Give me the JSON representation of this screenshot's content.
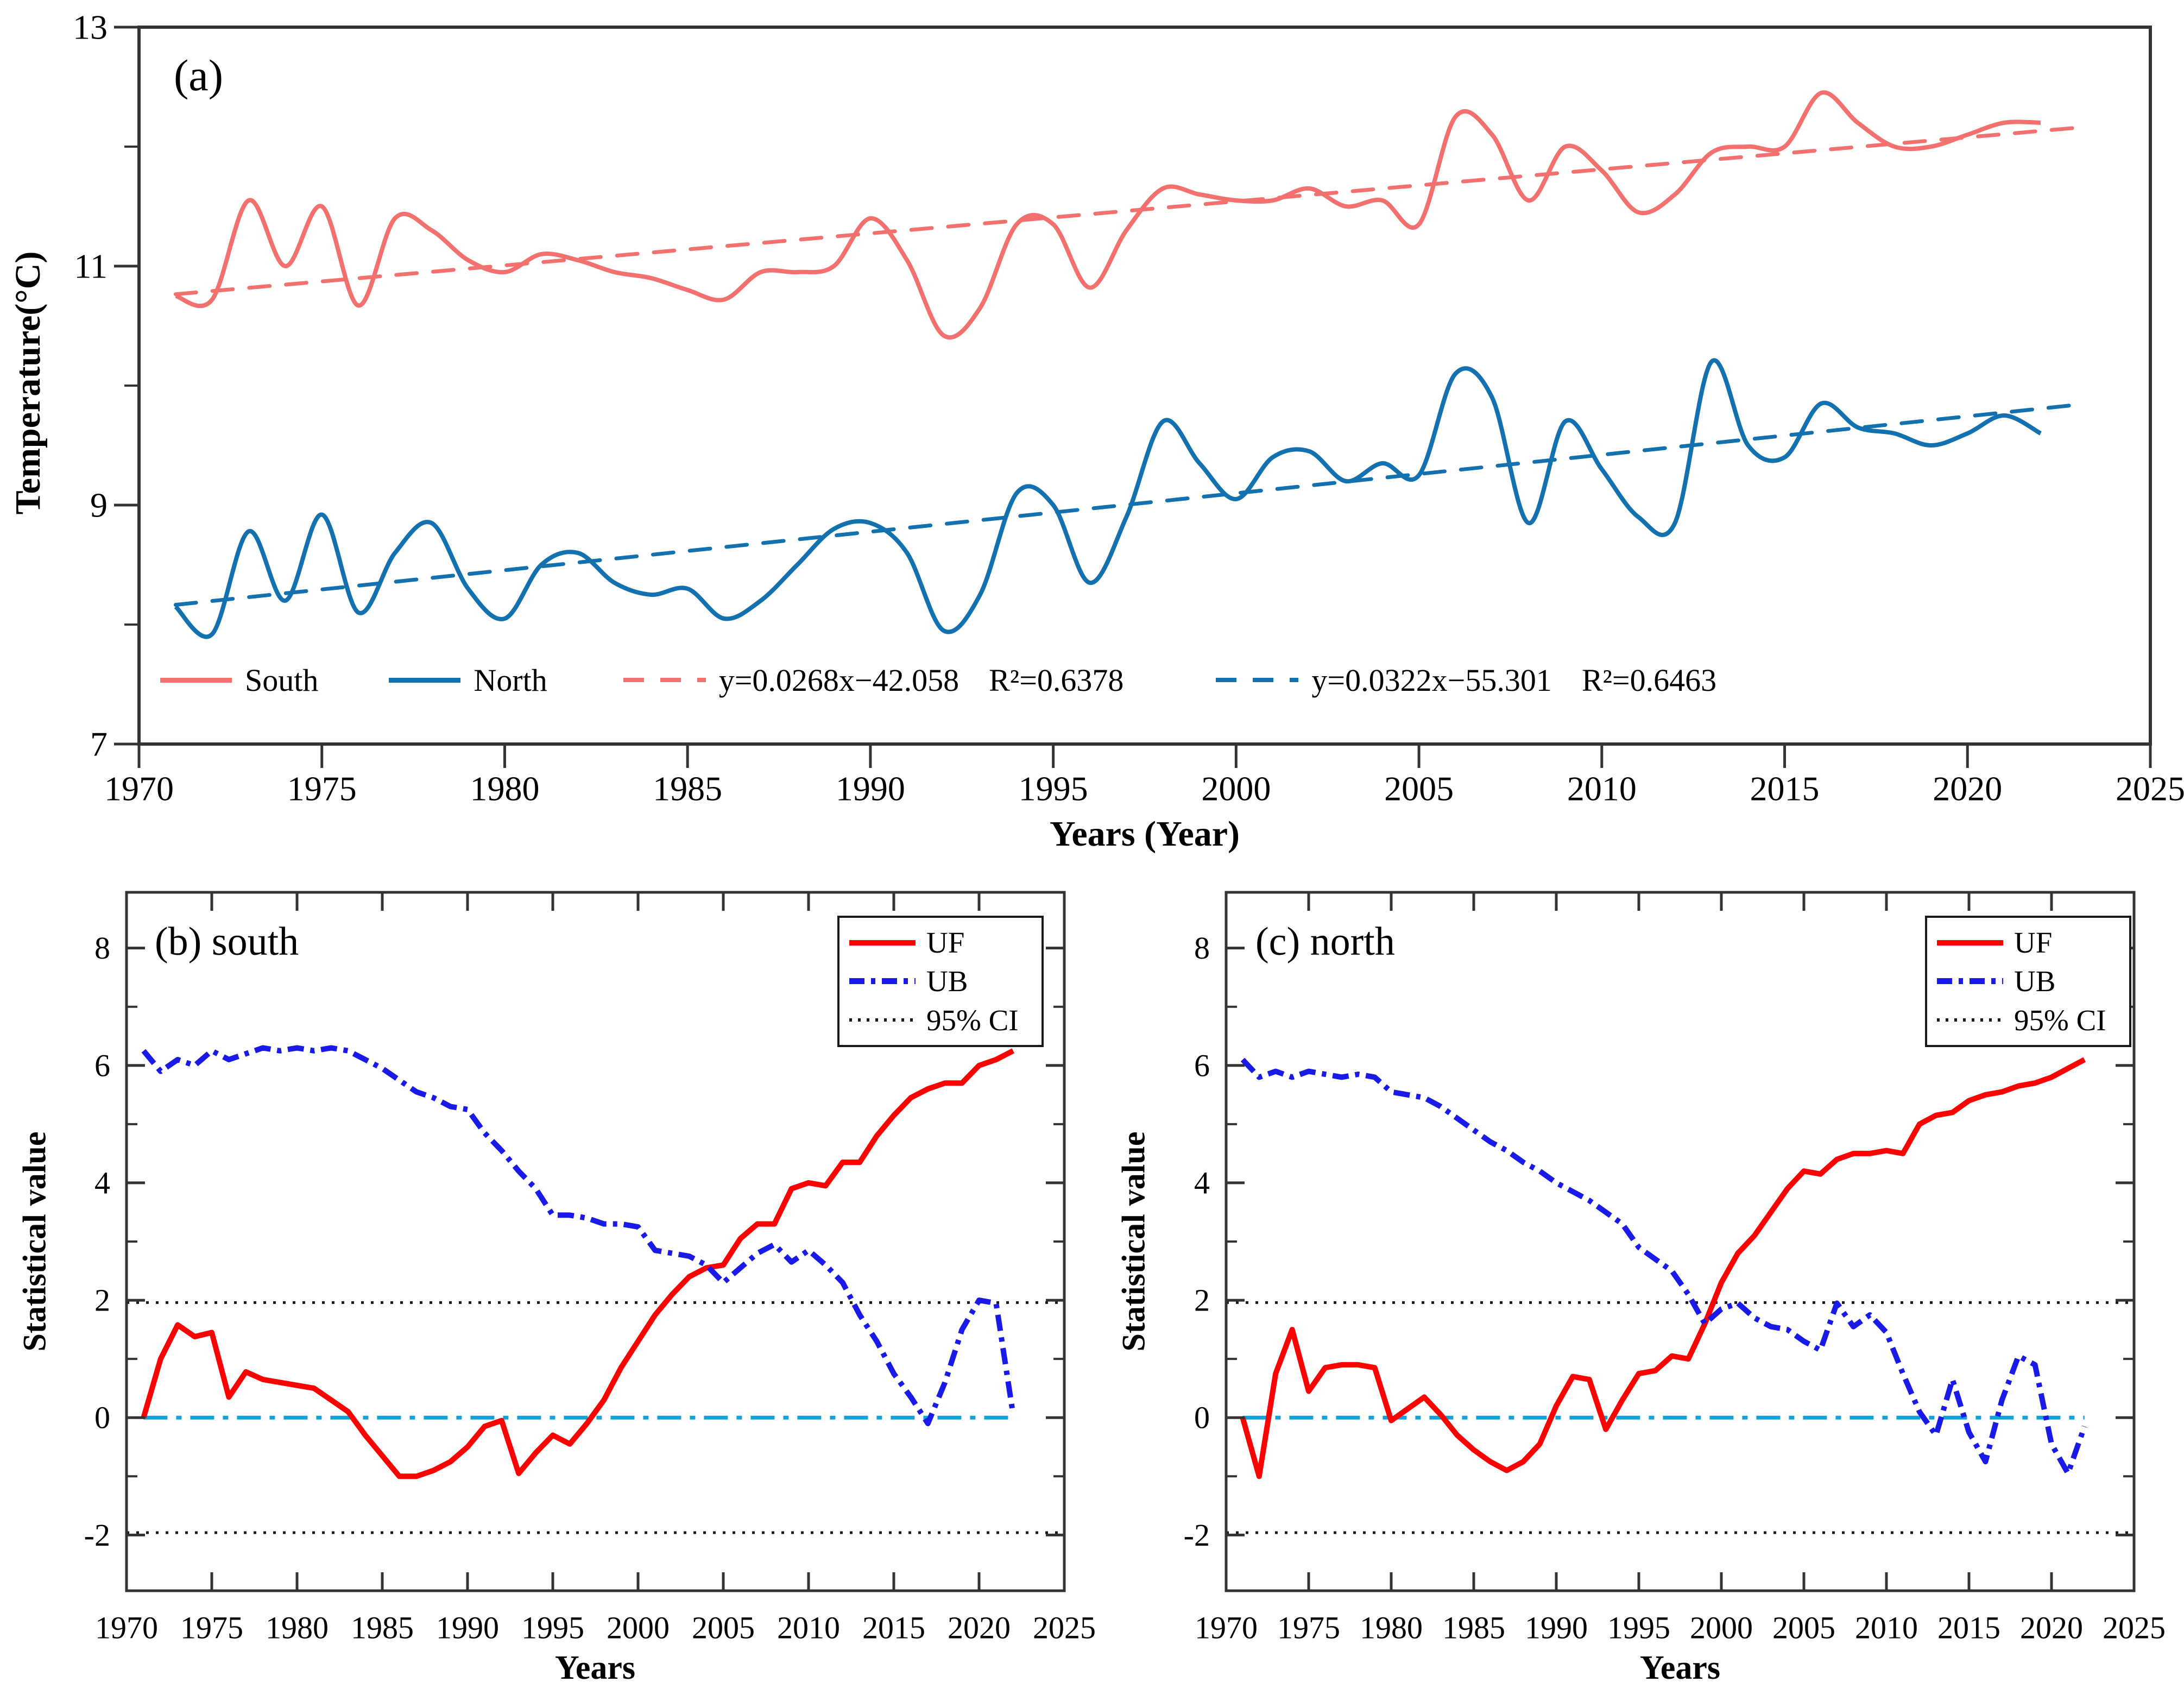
{
  "chart_data": [
    {
      "id": "a",
      "type": "line",
      "panel_label": "(a)",
      "x_label": "Years (Year)",
      "y_label": "Temperature(°C)",
      "xlim": [
        1970,
        2025
      ],
      "ylim": [
        7,
        13
      ],
      "x_ticks": [
        1970,
        1975,
        1980,
        1985,
        1990,
        1995,
        2000,
        2005,
        2010,
        2015,
        2020,
        2025
      ],
      "y_ticks": [
        7,
        9,
        11,
        13
      ],
      "y_ticks_minor": [
        8,
        10,
        12
      ],
      "years": [
        1971,
        1972,
        1973,
        1974,
        1975,
        1976,
        1977,
        1978,
        1979,
        1980,
        1981,
        1982,
        1983,
        1984,
        1985,
        1986,
        1987,
        1988,
        1989,
        1990,
        1991,
        1992,
        1993,
        1994,
        1995,
        1996,
        1997,
        1998,
        1999,
        2000,
        2001,
        2002,
        2003,
        2004,
        2005,
        2006,
        2007,
        2008,
        2009,
        2010,
        2011,
        2012,
        2013,
        2014,
        2015,
        2016,
        2017,
        2018,
        2019,
        2020,
        2021,
        2022
      ],
      "series": [
        {
          "name": "South",
          "color": "#F2716E",
          "style": "solid",
          "values": [
            10.75,
            10.72,
            11.55,
            11.0,
            11.5,
            10.67,
            11.4,
            11.3,
            11.05,
            10.95,
            11.1,
            11.05,
            10.95,
            10.9,
            10.8,
            10.72,
            10.95,
            10.95,
            11.0,
            11.4,
            11.05,
            10.42,
            10.65,
            11.35,
            11.35,
            10.82,
            11.3,
            11.65,
            11.6,
            11.55,
            11.55,
            11.65,
            11.5,
            11.55,
            11.35,
            12.25,
            12.1,
            11.55,
            12.0,
            11.8,
            11.45,
            11.6,
            11.95,
            12.0,
            12.0,
            12.45,
            12.2,
            12.0,
            12.0,
            12.1,
            12.2,
            12.2
          ]
        },
        {
          "name": "North",
          "color": "#1271AE",
          "style": "solid",
          "values": [
            8.15,
            7.92,
            8.78,
            8.2,
            8.92,
            8.1,
            8.6,
            8.85,
            8.3,
            8.05,
            8.5,
            8.6,
            8.35,
            8.25,
            8.3,
            8.05,
            8.2,
            8.5,
            8.8,
            8.85,
            8.6,
            7.95,
            8.25,
            9.1,
            9.0,
            8.35,
            8.9,
            9.7,
            9.35,
            9.05,
            9.4,
            9.45,
            9.2,
            9.35,
            9.25,
            10.1,
            9.9,
            8.85,
            9.7,
            9.3,
            8.9,
            8.85,
            10.2,
            9.5,
            9.4,
            9.85,
            9.65,
            9.6,
            9.5,
            9.6,
            9.75,
            9.6
          ]
        }
      ],
      "trend_lines": [
        {
          "equation": "y=0.0268x−42.058",
          "r2": "R²=0.6378",
          "slope": 0.0268,
          "intercept": -42.058,
          "color": "#F2716E",
          "style": "dash",
          "x_range": [
            1971,
            2023
          ]
        },
        {
          "equation": "y=0.0322x−55.301",
          "r2": "R²=0.6463",
          "slope": 0.0322,
          "intercept": -55.301,
          "color": "#1271AE",
          "style": "dash",
          "x_range": [
            1971,
            2023
          ]
        }
      ]
    },
    {
      "id": "b",
      "type": "line",
      "panel_label": "(b) south",
      "x_label": "Years",
      "y_label": "Statistical value",
      "ref_label": "95% CI",
      "xlim": [
        1970,
        2025
      ],
      "ylim": [
        -2.95,
        8.95
      ],
      "x_ticks": [
        1970,
        1975,
        1980,
        1985,
        1990,
        1995,
        2000,
        2005,
        2010,
        2015,
        2020,
        2025
      ],
      "y_ticks": [
        -2,
        0,
        2,
        4,
        6,
        8
      ],
      "y_ticks_minor": [
        -1,
        1,
        3,
        5,
        7
      ],
      "years": [
        1971,
        1972,
        1973,
        1974,
        1975,
        1976,
        1977,
        1978,
        1979,
        1980,
        1981,
        1982,
        1983,
        1984,
        1985,
        1986,
        1987,
        1988,
        1989,
        1990,
        1991,
        1992,
        1993,
        1994,
        1995,
        1996,
        1997,
        1998,
        1999,
        2000,
        2001,
        2002,
        2003,
        2004,
        2005,
        2006,
        2007,
        2008,
        2009,
        2010,
        2011,
        2012,
        2013,
        2014,
        2015,
        2016,
        2017,
        2018,
        2019,
        2020,
        2021,
        2022
      ],
      "series": [
        {
          "name": "UF",
          "color": "#FF0000",
          "style": "solid",
          "values": [
            0.0,
            1.0,
            1.58,
            1.38,
            1.45,
            0.35,
            0.78,
            0.65,
            0.6,
            0.55,
            0.5,
            0.3,
            0.1,
            -0.3,
            -0.65,
            -1.0,
            -1.0,
            -0.9,
            -0.75,
            -0.5,
            -0.15,
            -0.05,
            -0.95,
            -0.6,
            -0.3,
            -0.45,
            -0.1,
            0.3,
            0.85,
            1.3,
            1.75,
            2.1,
            2.4,
            2.55,
            2.6,
            3.05,
            3.3,
            3.3,
            3.9,
            4.0,
            3.95,
            4.35,
            4.35,
            4.8,
            5.15,
            5.45,
            5.6,
            5.7,
            5.7,
            6.0,
            6.1,
            6.25
          ]
        },
        {
          "name": "UB",
          "color": "#1A1AE8",
          "style": "dashdot",
          "values": [
            6.25,
            5.9,
            6.1,
            6.0,
            6.25,
            6.1,
            6.2,
            6.3,
            6.25,
            6.3,
            6.25,
            6.3,
            6.25,
            6.1,
            5.95,
            5.75,
            5.55,
            5.45,
            5.3,
            5.25,
            4.85,
            4.55,
            4.2,
            3.9,
            3.45,
            3.45,
            3.4,
            3.3,
            3.3,
            3.25,
            2.85,
            2.8,
            2.75,
            2.6,
            2.3,
            2.55,
            2.8,
            2.95,
            2.65,
            2.85,
            2.6,
            2.3,
            1.75,
            1.3,
            0.75,
            0.35,
            -0.1,
            0.6,
            1.5,
            2.0,
            1.95,
            0.05
          ]
        }
      ],
      "ref_lines": [
        {
          "name": "ci-upper",
          "value": 1.96,
          "color": "#1a1a1a",
          "style": "dot"
        },
        {
          "name": "ci-lower",
          "value": -1.96,
          "color": "#1a1a1a",
          "style": "dot"
        },
        {
          "name": "zero-line",
          "value": 0,
          "color": "#12A2DB",
          "style": "zerodash",
          "x_range": [
            1971,
            2022
          ]
        }
      ]
    },
    {
      "id": "c",
      "type": "line",
      "panel_label": "(c) north",
      "x_label": "Years",
      "y_label": "Statistical value",
      "ref_label": "95% CI",
      "xlim": [
        1970,
        2025
      ],
      "ylim": [
        -2.95,
        8.95
      ],
      "x_ticks": [
        1970,
        1975,
        1980,
        1985,
        1990,
        1995,
        2000,
        2005,
        2010,
        2015,
        2020,
        2025
      ],
      "y_ticks": [
        -2,
        0,
        2,
        4,
        6,
        8
      ],
      "y_ticks_minor": [
        -1,
        1,
        3,
        5,
        7
      ],
      "years": [
        1971,
        1972,
        1973,
        1974,
        1975,
        1976,
        1977,
        1978,
        1979,
        1980,
        1981,
        1982,
        1983,
        1984,
        1985,
        1986,
        1987,
        1988,
        1989,
        1990,
        1991,
        1992,
        1993,
        1994,
        1995,
        1996,
        1997,
        1998,
        1999,
        2000,
        2001,
        2002,
        2003,
        2004,
        2005,
        2006,
        2007,
        2008,
        2009,
        2010,
        2011,
        2012,
        2013,
        2014,
        2015,
        2016,
        2017,
        2018,
        2019,
        2020,
        2021,
        2022
      ],
      "series": [
        {
          "name": "UF",
          "color": "#FF0000",
          "style": "solid",
          "values": [
            0.0,
            -1.0,
            0.75,
            1.5,
            0.45,
            0.85,
            0.9,
            0.9,
            0.85,
            -0.05,
            0.15,
            0.35,
            0.05,
            -0.3,
            -0.55,
            -0.75,
            -0.9,
            -0.75,
            -0.45,
            0.2,
            0.7,
            0.65,
            -0.2,
            0.3,
            0.75,
            0.8,
            1.05,
            1.0,
            1.6,
            2.3,
            2.8,
            3.1,
            3.5,
            3.9,
            4.2,
            4.15,
            4.4,
            4.5,
            4.5,
            4.55,
            4.5,
            5.0,
            5.15,
            5.2,
            5.4,
            5.5,
            5.55,
            5.65,
            5.7,
            5.8,
            5.95,
            6.1
          ]
        },
        {
          "name": "UB",
          "color": "#1A1AE8",
          "style": "dashdot",
          "values": [
            6.1,
            5.8,
            5.9,
            5.8,
            5.9,
            5.85,
            5.8,
            5.85,
            5.8,
            5.55,
            5.5,
            5.45,
            5.3,
            5.1,
            4.9,
            4.7,
            4.55,
            4.35,
            4.2,
            4.0,
            3.85,
            3.7,
            3.5,
            3.3,
            2.9,
            2.7,
            2.5,
            2.1,
            1.6,
            1.85,
            1.95,
            1.7,
            1.55,
            1.5,
            1.3,
            1.15,
            1.95,
            1.55,
            1.75,
            1.45,
            0.75,
            0.1,
            -0.3,
            0.65,
            -0.25,
            -0.75,
            0.3,
            1.05,
            0.9,
            -0.45,
            -0.95,
            -0.15
          ]
        }
      ],
      "ref_lines": [
        {
          "name": "ci-upper",
          "value": 1.96,
          "color": "#1a1a1a",
          "style": "dot"
        },
        {
          "name": "ci-lower",
          "value": -1.96,
          "color": "#1a1a1a",
          "style": "dot"
        },
        {
          "name": "zero-line",
          "value": 0,
          "color": "#12A2DB",
          "style": "zerodash",
          "x_range": [
            1971,
            2022
          ]
        }
      ]
    }
  ]
}
